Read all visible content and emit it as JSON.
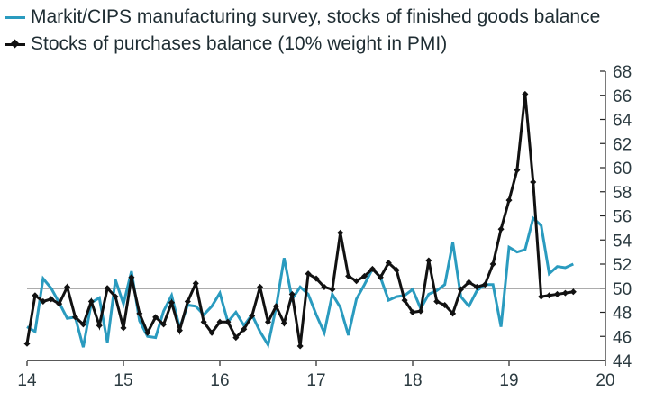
{
  "chart_data": {
    "type": "line",
    "title": "",
    "xlabel": "",
    "ylabel": "",
    "x_start": "2014-01",
    "x_step": "month",
    "xlim": [
      14,
      20
    ],
    "ylim": [
      44,
      68
    ],
    "x_ticks": [
      "14",
      "15",
      "16",
      "17",
      "18",
      "19",
      "20"
    ],
    "y_ticks": [
      "44",
      "46",
      "48",
      "50",
      "52",
      "54",
      "56",
      "58",
      "60",
      "62",
      "64",
      "66",
      "68"
    ],
    "y_axis_side": "right",
    "reference_line": 50,
    "grid": false,
    "legend_position": "top-left",
    "series": [
      {
        "name": "Markit/CIPS manufacturing survey, stocks of finished goods balance",
        "color": "#2a9bbf",
        "marker": "none",
        "values": [
          46.8,
          46.4,
          50.8,
          50.0,
          48.8,
          47.5,
          47.6,
          45.1,
          48.8,
          49.2,
          45.5,
          50.7,
          48.7,
          51.4,
          47.3,
          46.0,
          45.9,
          48.1,
          49.4,
          46.7,
          48.6,
          48.5,
          47.8,
          48.5,
          49.6,
          47.2,
          48.0,
          46.9,
          47.8,
          46.4,
          45.3,
          48.4,
          52.5,
          49.1,
          50.1,
          49.5,
          47.8,
          46.3,
          49.5,
          48.4,
          46.1,
          49.1,
          50.3,
          51.6,
          50.9,
          49.0,
          49.3,
          49.4,
          49.9,
          48.3,
          49.5,
          49.8,
          50.3,
          53.8,
          49.3,
          48.5,
          49.8,
          50.3,
          50.3,
          46.8,
          53.4,
          53.0,
          53.2,
          55.8,
          55.2,
          51.2,
          51.8,
          51.7,
          52.0
        ],
        "legend_label": "Markit/CIPS manufacturing survey, stocks of finished goods balance"
      },
      {
        "name": "Stocks of purchases balance (10% weight in PMI)",
        "color": "#111111",
        "marker": "diamond",
        "values": [
          45.4,
          49.4,
          48.9,
          49.1,
          48.7,
          50.1,
          47.6,
          47.0,
          48.9,
          46.9,
          50.0,
          49.3,
          46.7,
          50.9,
          47.9,
          46.3,
          47.6,
          47.0,
          48.8,
          46.5,
          48.9,
          50.4,
          47.2,
          46.3,
          47.2,
          47.2,
          45.9,
          46.6,
          47.7,
          50.1,
          47.2,
          48.5,
          47.1,
          49.5,
          45.2,
          51.2,
          50.8,
          50.1,
          49.9,
          54.6,
          51.0,
          50.6,
          51.0,
          51.6,
          50.9,
          52.1,
          51.5,
          49.0,
          48.0,
          48.1,
          52.3,
          48.9,
          48.6,
          47.9,
          49.9,
          50.5,
          50.1,
          50.3,
          52.0,
          54.9,
          57.3,
          59.8,
          66.1,
          58.8,
          49.3,
          49.4,
          49.5,
          49.6,
          49.7
        ],
        "legend_label": "Stocks of purchases balance (10% weight in PMI)"
      }
    ]
  },
  "legend": {
    "items": [
      {
        "label": "Markit/CIPS manufacturing survey, stocks of finished goods balance",
        "color": "#2a9bbf"
      },
      {
        "label": "Stocks of purchases balance (10% weight in PMI)",
        "color": "#111111"
      }
    ]
  }
}
